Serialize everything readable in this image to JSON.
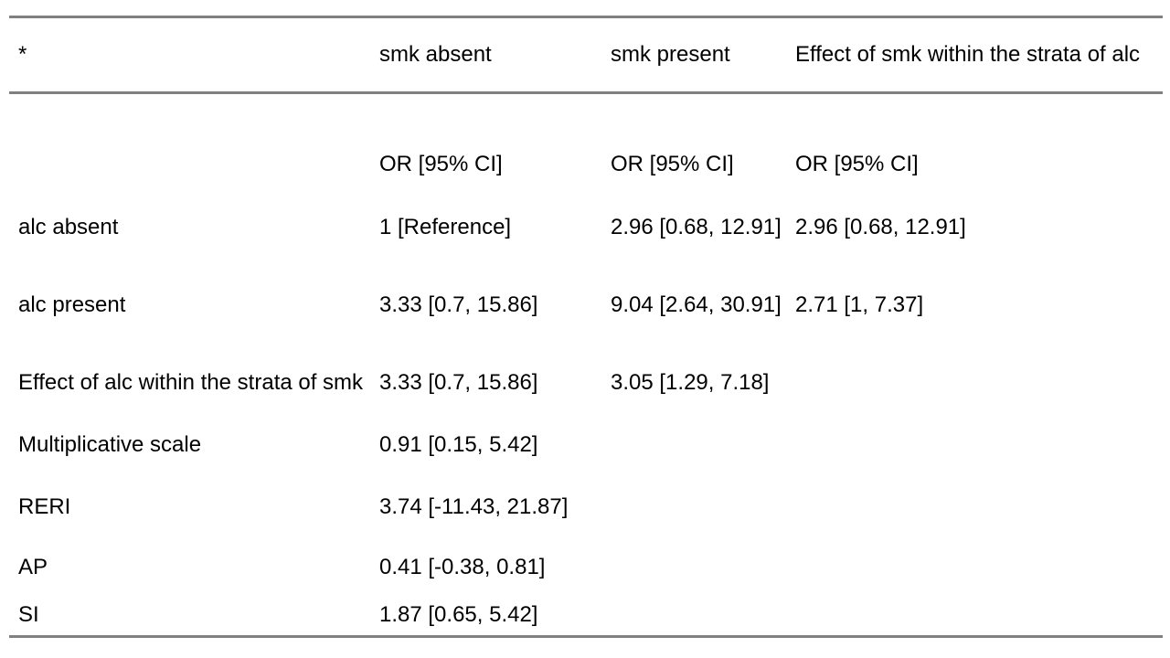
{
  "table": {
    "header": [
      "*",
      "smk absent",
      "smk present",
      "Effect of smk within the strata of alc"
    ],
    "subheader": [
      "",
      "OR [95% CI]",
      "OR [95% CI]",
      "OR [95% CI]"
    ],
    "rows": [
      {
        "label": "alc absent",
        "smk_absent": "1 [Reference]",
        "smk_present": "2.96 [0.68, 12.91]",
        "effect_of_smk": "2.96 [0.68, 12.91]"
      },
      {
        "label": "alc present",
        "smk_absent": "3.33 [0.7, 15.86]",
        "smk_present": "9.04 [2.64, 30.91]",
        "effect_of_smk": "2.71 [1, 7.37]"
      },
      {
        "label": "Effect of alc within the strata of smk",
        "smk_absent": "3.33 [0.7, 15.86]",
        "smk_present": "3.05 [1.29, 7.18]",
        "effect_of_smk": ""
      },
      {
        "label": "Multiplicative scale",
        "smk_absent": "0.91 [0.15, 5.42]",
        "smk_present": "",
        "effect_of_smk": ""
      },
      {
        "label": "RERI",
        "smk_absent": "3.74 [-11.43, 21.87]",
        "smk_present": "",
        "effect_of_smk": ""
      },
      {
        "label": "AP",
        "smk_absent": "0.41 [-0.38, 0.81]",
        "smk_present": "",
        "effect_of_smk": ""
      },
      {
        "label": "SI",
        "smk_absent": "1.87 [0.65, 5.42]",
        "smk_present": "",
        "effect_of_smk": ""
      }
    ]
  },
  "colors": {
    "rule": "#808080",
    "text": "#000000",
    "background": "#ffffff"
  }
}
